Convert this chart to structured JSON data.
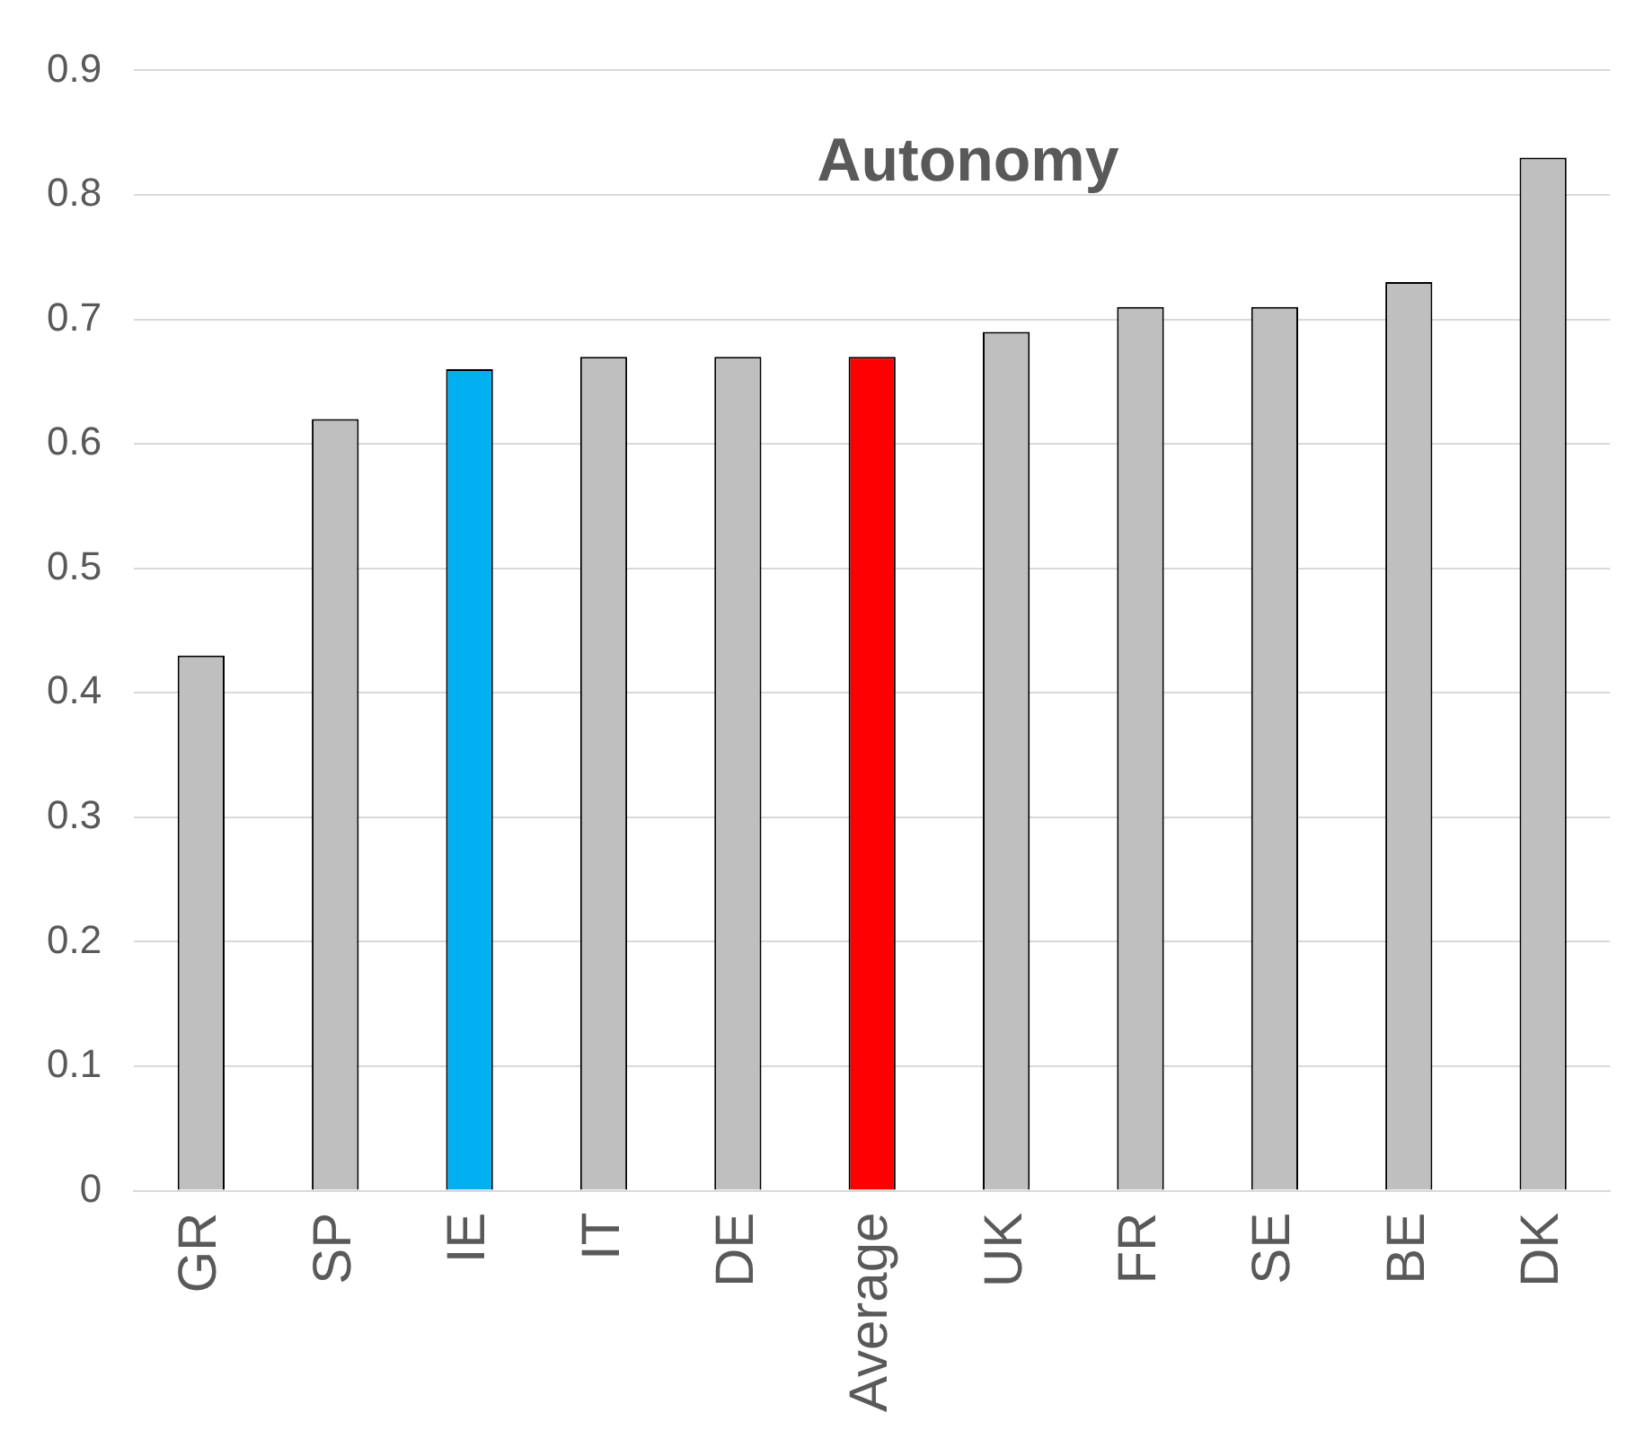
{
  "chart_data": {
    "type": "bar",
    "title": "Autonomy",
    "categories": [
      "GR",
      "SP",
      "IE",
      "IT",
      "DE",
      "Average",
      "UK",
      "FR",
      "SE",
      "BE",
      "DK"
    ],
    "values": [
      0.43,
      0.62,
      0.66,
      0.67,
      0.67,
      0.67,
      0.69,
      0.71,
      0.71,
      0.73,
      0.83
    ],
    "colors": [
      "#bfbfbf",
      "#bfbfbf",
      "#00b0f0",
      "#bfbfbf",
      "#bfbfbf",
      "#ff0000",
      "#bfbfbf",
      "#bfbfbf",
      "#bfbfbf",
      "#bfbfbf",
      "#bfbfbf"
    ],
    "ylim": [
      0,
      0.9
    ],
    "yticks": [
      0,
      0.1,
      0.2,
      0.3,
      0.4,
      0.5,
      0.6,
      0.7,
      0.8,
      0.9
    ],
    "grid": "y",
    "legend": false
  }
}
